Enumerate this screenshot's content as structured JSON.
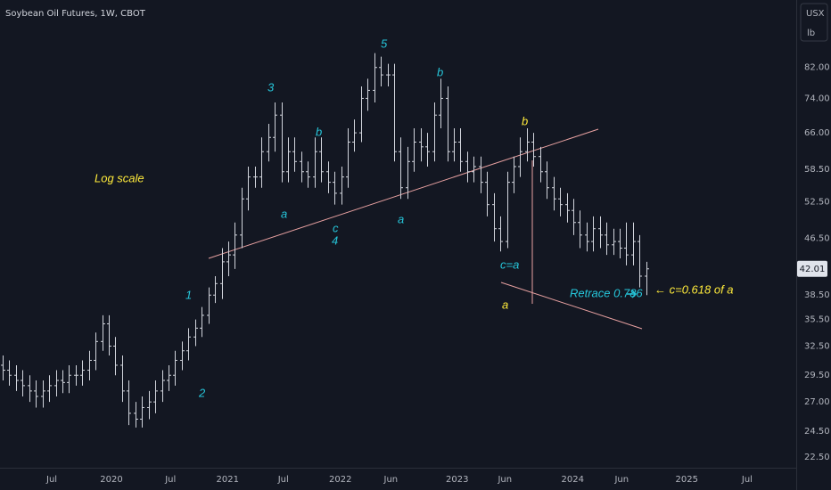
{
  "chart_data": {
    "type": "ohlc",
    "title": "Soybean Oil Futures, 1W, CBOT",
    "currency": "USX",
    "unit": "lb",
    "color": "#d1d4dc",
    "log_scale": true,
    "grid": false,
    "open": [
      30.5,
      30,
      29.5,
      29,
      28.5,
      28,
      27.5,
      28,
      28.5,
      29,
      28.8,
      29.5,
      29.5,
      30,
      31,
      33,
      35,
      32.5,
      30.5,
      28,
      26,
      25.5,
      26.5,
      27,
      28,
      29,
      29.5,
      31,
      32,
      33.5,
      34.5,
      36,
      38.5,
      40,
      43,
      44,
      47,
      53,
      57,
      57,
      62,
      65,
      70,
      58,
      62,
      60,
      58,
      57,
      62,
      58,
      56,
      54,
      57,
      64,
      66,
      74,
      76,
      82,
      80,
      80,
      62,
      55,
      60,
      64,
      63,
      62,
      70,
      74,
      62,
      64,
      60,
      58,
      59,
      56,
      52,
      48,
      46,
      56,
      59,
      62,
      64,
      61,
      58,
      55,
      53,
      52,
      51,
      49,
      47,
      46,
      48,
      47,
      45.5,
      46,
      45,
      44,
      46,
      41
    ],
    "high": [
      31.5,
      31,
      30.5,
      30,
      29.5,
      29,
      29,
      29.5,
      30,
      30,
      30.5,
      30.5,
      31,
      32,
      34,
      36,
      36,
      33.5,
      31.5,
      29,
      27,
      27.5,
      28,
      29,
      30,
      30.5,
      32,
      33,
      34.5,
      35.5,
      37,
      39.5,
      41,
      45,
      46,
      49,
      55,
      59,
      59,
      65,
      68,
      73,
      73,
      65,
      65,
      62,
      60,
      65,
      65,
      60,
      58,
      59,
      67,
      69,
      77,
      79,
      86,
      85,
      83,
      83,
      65,
      63,
      67,
      67,
      66,
      73,
      79,
      77,
      67,
      67,
      62,
      61,
      61,
      58,
      54,
      50,
      58,
      61,
      65,
      67,
      66,
      63,
      60,
      57,
      55,
      54,
      53,
      51,
      49,
      50,
      50,
      49,
      48,
      48,
      49,
      49,
      47,
      43
    ],
    "low": [
      29,
      28.5,
      28,
      27.5,
      27,
      26.5,
      26.5,
      27,
      27.5,
      27.8,
      27.8,
      28.5,
      28.5,
      29,
      30,
      32,
      31.5,
      29.5,
      27,
      25,
      24.8,
      24.8,
      25.5,
      26,
      27,
      28,
      28.5,
      30,
      31,
      32.5,
      33.5,
      35,
      37.5,
      38,
      41,
      42,
      45,
      51,
      55,
      55,
      60,
      62,
      56,
      56,
      58,
      56,
      55,
      55,
      56,
      54,
      52,
      52,
      55,
      62,
      64,
      71,
      73,
      77,
      77,
      60,
      53,
      53,
      58,
      60,
      59,
      60,
      67,
      60,
      60,
      58,
      56,
      56,
      54,
      50,
      46,
      44.5,
      45,
      54,
      57,
      60,
      59,
      56,
      53,
      51,
      50,
      49,
      47,
      45,
      44.5,
      44.5,
      45,
      44,
      44,
      43.5,
      42.5,
      42.5,
      39.5,
      38.5
    ],
    "close": [
      30,
      29.5,
      29,
      28.5,
      28,
      27.5,
      28,
      28.5,
      29,
      28.8,
      29.5,
      29.5,
      30,
      31,
      33,
      35,
      32.5,
      30.5,
      28,
      26,
      25.5,
      26.5,
      27,
      28,
      29,
      29.5,
      31,
      32,
      33.5,
      34.5,
      36,
      38.5,
      40,
      43,
      44,
      47,
      53,
      57,
      57,
      62,
      65,
      70,
      58,
      62,
      60,
      58,
      57,
      62,
      58,
      56,
      54,
      57,
      64,
      66,
      74,
      76,
      82,
      80,
      80,
      62,
      55,
      60,
      64,
      63,
      62,
      70,
      74,
      62,
      64,
      60,
      58,
      59,
      56,
      52,
      48,
      46,
      56,
      59,
      62,
      64,
      61,
      58,
      55,
      53,
      52,
      51,
      49,
      47,
      46,
      48,
      47,
      45.5,
      46,
      45,
      44,
      46,
      41,
      42.01
    ],
    "xlim": [
      -0.4,
      119.6
    ],
    "xticks": [
      {
        "value": 7.4,
        "label": "Jul"
      },
      {
        "value": 16.4,
        "label": "2020"
      },
      {
        "value": 25.3,
        "label": "Jul"
      },
      {
        "value": 33.9,
        "label": "2021"
      },
      {
        "value": 42.3,
        "label": "Jul"
      },
      {
        "value": 50.9,
        "label": "2022"
      },
      {
        "value": 58.5,
        "label": "Jun"
      },
      {
        "value": 68.5,
        "label": "2023"
      },
      {
        "value": 75.7,
        "label": "Jun"
      },
      {
        "value": 85.9,
        "label": "2024"
      },
      {
        "value": 93.3,
        "label": "Jun"
      },
      {
        "value": 103.1,
        "label": "2025"
      },
      {
        "value": 112.2,
        "label": "Jul"
      }
    ],
    "ylim": [
      21.7,
      102.6
    ],
    "yticks": [
      {
        "value": 22.5,
        "label": "22.50"
      },
      {
        "value": 24.5,
        "label": "24.50"
      },
      {
        "value": 27,
        "label": "27.00"
      },
      {
        "value": 29.5,
        "label": "29.50"
      },
      {
        "value": 32.5,
        "label": "32.50"
      },
      {
        "value": 35.5,
        "label": "35.50"
      },
      {
        "value": 38.5,
        "label": "38.50"
      },
      {
        "value": 46.5,
        "label": "46.50"
      },
      {
        "value": 52.5,
        "label": "52.50"
      },
      {
        "value": 58.5,
        "label": "58.50"
      },
      {
        "value": 66,
        "label": "66.00"
      },
      {
        "value": 74,
        "label": "74.00"
      },
      {
        "value": 82,
        "label": "82.00"
      }
    ],
    "annotations": [
      "Log scale",
      "1",
      "2",
      "3",
      "a",
      "b",
      "c",
      "4",
      "5",
      "a",
      "b",
      "c=a",
      "b",
      "a",
      "Retrace 0.786",
      "← c=0.618 of a"
    ]
  }
}
